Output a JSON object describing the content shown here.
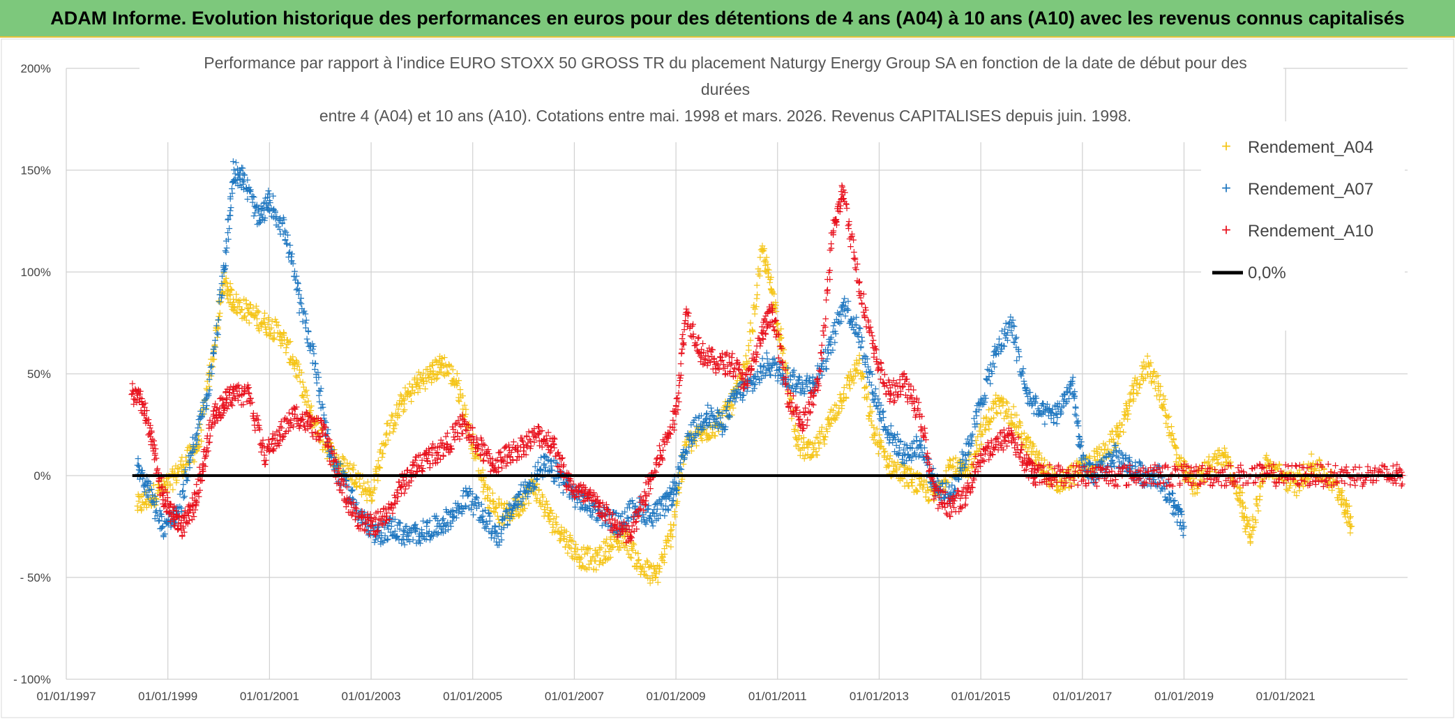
{
  "header": {
    "banner": "ADAM Informe. Evolution historique des performances en euros pour des détentions de 4 ans (A04) à 10 ans (A10) avec les revenus connus capitalisés"
  },
  "chart_data": {
    "type": "scatter",
    "title_lines": [
      "Performance par rapport à l'indice EURO STOXX 50 GROSS TR  du placement Naturgy Energy Group SA en fonction de la date de début pour des",
      "durées",
      "entre 4 (A04) et 10 ans (A10). Cotations entre mai. 1998 et mars. 2026. Revenus CAPITALISES depuis juin. 1998."
    ],
    "x_ticks": [
      "01/01/1997",
      "01/01/1999",
      "01/01/2001",
      "01/01/2003",
      "01/01/2005",
      "01/01/2007",
      "01/01/2009",
      "01/01/2011",
      "01/01/2013",
      "01/01/2015",
      "01/01/2017",
      "01/01/2019",
      "01/01/2021"
    ],
    "xlim": [
      1997.0,
      2023.4
    ],
    "y_ticks": [
      "200%",
      "150%",
      "100%",
      "50%",
      "0%",
      "- 50%",
      "- 100%"
    ],
    "ylim": [
      -100,
      200
    ],
    "grid": true,
    "legend_position": "top-right",
    "series": [
      {
        "name": "Rendement_A04",
        "color": "#f5c518",
        "points": [
          [
            1998.4,
            -15
          ],
          [
            1998.7,
            -10
          ],
          [
            1999.0,
            -5
          ],
          [
            1999.3,
            5
          ],
          [
            1999.6,
            15
          ],
          [
            1999.9,
            60
          ],
          [
            2000.1,
            95
          ],
          [
            2000.3,
            85
          ],
          [
            2000.6,
            80
          ],
          [
            2000.9,
            75
          ],
          [
            2001.2,
            70
          ],
          [
            2001.5,
            55
          ],
          [
            2001.8,
            30
          ],
          [
            2002.1,
            15
          ],
          [
            2002.4,
            5
          ],
          [
            2002.7,
            0
          ],
          [
            2003.0,
            -10
          ],
          [
            2003.3,
            20
          ],
          [
            2003.6,
            35
          ],
          [
            2003.9,
            45
          ],
          [
            2004.2,
            50
          ],
          [
            2004.4,
            55
          ],
          [
            2004.7,
            45
          ],
          [
            2005.0,
            15
          ],
          [
            2005.3,
            -10
          ],
          [
            2005.6,
            -20
          ],
          [
            2005.9,
            -15
          ],
          [
            2006.2,
            -5
          ],
          [
            2006.5,
            -20
          ],
          [
            2006.8,
            -30
          ],
          [
            2007.1,
            -40
          ],
          [
            2007.4,
            -42
          ],
          [
            2007.7,
            -35
          ],
          [
            2008.0,
            -30
          ],
          [
            2008.3,
            -45
          ],
          [
            2008.6,
            -50
          ],
          [
            2008.9,
            -30
          ],
          [
            2009.2,
            15
          ],
          [
            2009.5,
            20
          ],
          [
            2009.8,
            25
          ],
          [
            2010.1,
            35
          ],
          [
            2010.4,
            55
          ],
          [
            2010.7,
            110
          ],
          [
            2010.9,
            90
          ],
          [
            2011.1,
            60
          ],
          [
            2011.4,
            15
          ],
          [
            2011.7,
            10
          ],
          [
            2012.0,
            25
          ],
          [
            2012.3,
            40
          ],
          [
            2012.6,
            55
          ],
          [
            2012.9,
            20
          ],
          [
            2013.2,
            5
          ],
          [
            2013.5,
            0
          ],
          [
            2013.8,
            -5
          ],
          [
            2014.1,
            -10
          ],
          [
            2014.4,
            5
          ],
          [
            2014.7,
            0
          ],
          [
            2015.0,
            20
          ],
          [
            2015.3,
            35
          ],
          [
            2015.6,
            30
          ],
          [
            2015.9,
            15
          ],
          [
            2016.2,
            5
          ],
          [
            2016.5,
            -5
          ],
          [
            2016.8,
            0
          ],
          [
            2017.1,
            5
          ],
          [
            2017.4,
            10
          ],
          [
            2017.7,
            20
          ],
          [
            2018.0,
            40
          ],
          [
            2018.3,
            55
          ],
          [
            2018.6,
            35
          ],
          [
            2018.9,
            5
          ],
          [
            2019.2,
            -5
          ],
          [
            2019.5,
            5
          ],
          [
            2019.8,
            10
          ],
          [
            2020.1,
            -10
          ],
          [
            2020.3,
            -30
          ],
          [
            2020.6,
            5
          ],
          [
            2020.9,
            0
          ],
          [
            2021.2,
            -5
          ],
          [
            2021.5,
            5
          ],
          [
            2021.8,
            0
          ],
          [
            2022.1,
            -10
          ],
          [
            2022.3,
            -25
          ]
        ]
      },
      {
        "name": "Rendement_A07",
        "color": "#1f77c0",
        "points": [
          [
            1998.4,
            5
          ],
          [
            1998.6,
            -5
          ],
          [
            1998.9,
            -25
          ],
          [
            1999.2,
            -20
          ],
          [
            1999.5,
            15
          ],
          [
            1999.8,
            40
          ],
          [
            2000.1,
            100
          ],
          [
            2000.3,
            150
          ],
          [
            2000.5,
            145
          ],
          [
            2000.8,
            125
          ],
          [
            2001.0,
            135
          ],
          [
            2001.3,
            120
          ],
          [
            2001.6,
            85
          ],
          [
            2001.9,
            55
          ],
          [
            2002.2,
            10
          ],
          [
            2002.5,
            -5
          ],
          [
            2002.8,
            -20
          ],
          [
            2003.1,
            -30
          ],
          [
            2003.4,
            -25
          ],
          [
            2003.7,
            -30
          ],
          [
            2004.0,
            -28
          ],
          [
            2004.3,
            -25
          ],
          [
            2004.6,
            -20
          ],
          [
            2004.9,
            -10
          ],
          [
            2005.2,
            -20
          ],
          [
            2005.5,
            -30
          ],
          [
            2005.8,
            -15
          ],
          [
            2006.1,
            -5
          ],
          [
            2006.4,
            5
          ],
          [
            2006.7,
            0
          ],
          [
            2007.0,
            -10
          ],
          [
            2007.3,
            -15
          ],
          [
            2007.6,
            -20
          ],
          [
            2007.9,
            -25
          ],
          [
            2008.2,
            -15
          ],
          [
            2008.5,
            -20
          ],
          [
            2008.8,
            -15
          ],
          [
            2009.0,
            -5
          ],
          [
            2009.3,
            20
          ],
          [
            2009.6,
            30
          ],
          [
            2009.9,
            25
          ],
          [
            2010.2,
            40
          ],
          [
            2010.5,
            45
          ],
          [
            2010.8,
            55
          ],
          [
            2011.1,
            50
          ],
          [
            2011.4,
            45
          ],
          [
            2011.7,
            45
          ],
          [
            2012.0,
            60
          ],
          [
            2012.3,
            85
          ],
          [
            2012.6,
            70
          ],
          [
            2012.9,
            40
          ],
          [
            2013.2,
            20
          ],
          [
            2013.5,
            10
          ],
          [
            2013.8,
            15
          ],
          [
            2014.1,
            -5
          ],
          [
            2014.4,
            -10
          ],
          [
            2014.7,
            10
          ],
          [
            2015.0,
            35
          ],
          [
            2015.3,
            60
          ],
          [
            2015.6,
            75
          ],
          [
            2015.9,
            40
          ],
          [
            2016.2,
            30
          ],
          [
            2016.5,
            30
          ],
          [
            2016.8,
            45
          ],
          [
            2017.0,
            5
          ],
          [
            2017.3,
            0
          ],
          [
            2017.6,
            10
          ],
          [
            2017.9,
            5
          ],
          [
            2018.2,
            0
          ],
          [
            2018.5,
            0
          ],
          [
            2018.8,
            -15
          ],
          [
            2019.0,
            -25
          ]
        ]
      },
      {
        "name": "Rendement_A10",
        "color": "#e8101c",
        "points": [
          [
            1998.3,
            40
          ],
          [
            1998.5,
            35
          ],
          [
            1998.7,
            15
          ],
          [
            1998.9,
            -10
          ],
          [
            1999.1,
            -20
          ],
          [
            1999.3,
            -25
          ],
          [
            1999.5,
            -15
          ],
          [
            1999.7,
            5
          ],
          [
            1999.9,
            30
          ],
          [
            2000.1,
            35
          ],
          [
            2000.3,
            40
          ],
          [
            2000.6,
            40
          ],
          [
            2000.9,
            10
          ],
          [
            2001.2,
            20
          ],
          [
            2001.5,
            30
          ],
          [
            2001.8,
            25
          ],
          [
            2002.1,
            20
          ],
          [
            2002.4,
            -5
          ],
          [
            2002.7,
            -20
          ],
          [
            2003.0,
            -25
          ],
          [
            2003.3,
            -20
          ],
          [
            2003.6,
            -5
          ],
          [
            2003.9,
            5
          ],
          [
            2004.2,
            10
          ],
          [
            2004.5,
            15
          ],
          [
            2004.8,
            25
          ],
          [
            2005.1,
            15
          ],
          [
            2005.4,
            5
          ],
          [
            2005.7,
            10
          ],
          [
            2006.0,
            15
          ],
          [
            2006.3,
            20
          ],
          [
            2006.6,
            15
          ],
          [
            2006.9,
            -5
          ],
          [
            2007.2,
            -10
          ],
          [
            2007.5,
            -15
          ],
          [
            2007.8,
            -25
          ],
          [
            2008.1,
            -30
          ],
          [
            2008.4,
            -10
          ],
          [
            2008.7,
            10
          ],
          [
            2009.0,
            30
          ],
          [
            2009.2,
            80
          ],
          [
            2009.5,
            60
          ],
          [
            2009.8,
            55
          ],
          [
            2010.1,
            55
          ],
          [
            2010.4,
            45
          ],
          [
            2010.7,
            70
          ],
          [
            2010.9,
            80
          ],
          [
            2011.2,
            40
          ],
          [
            2011.5,
            25
          ],
          [
            2011.8,
            45
          ],
          [
            2012.1,
            120
          ],
          [
            2012.3,
            140
          ],
          [
            2012.6,
            95
          ],
          [
            2012.9,
            60
          ],
          [
            2013.2,
            40
          ],
          [
            2013.5,
            45
          ],
          [
            2013.8,
            30
          ],
          [
            2014.1,
            -10
          ],
          [
            2014.4,
            -15
          ],
          [
            2014.7,
            -10
          ],
          [
            2015.0,
            10
          ],
          [
            2015.3,
            15
          ],
          [
            2015.6,
            20
          ],
          [
            2015.9,
            5
          ],
          [
            2016.1,
            0
          ],
          [
            2016.5,
            0
          ],
          [
            2017.0,
            0
          ],
          [
            2017.5,
            0
          ],
          [
            2018.0,
            0
          ],
          [
            2018.5,
            0
          ],
          [
            2019.0,
            0
          ],
          [
            2019.5,
            0
          ],
          [
            2020.0,
            0
          ],
          [
            2020.5,
            0
          ],
          [
            2021.0,
            0
          ],
          [
            2021.5,
            0
          ],
          [
            2022.0,
            0
          ],
          [
            2022.5,
            0
          ],
          [
            2023.0,
            0
          ],
          [
            2023.3,
            0
          ]
        ]
      }
    ],
    "zero_line": {
      "name": "0,0%",
      "color": "#000000",
      "x_range": [
        1998.3,
        2023.3
      ],
      "y": 0
    },
    "legend": [
      "Rendement_A04",
      "Rendement_A07",
      "Rendement_A10",
      "0,0%"
    ]
  }
}
